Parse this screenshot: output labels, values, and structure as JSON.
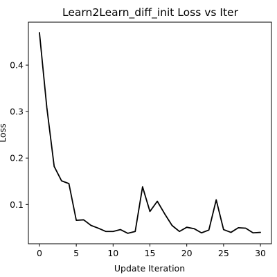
{
  "chart_data": {
    "type": "line",
    "title": "Learn2Learn_diff_init Loss vs Iter",
    "xlabel": "Update Iteration",
    "ylabel": "Loss",
    "xlim": [
      -1.5,
      31.5
    ],
    "ylim": [
      0.0155,
      0.4925
    ],
    "xticks": [
      0,
      5,
      10,
      15,
      20,
      25,
      30
    ],
    "yticks": [
      0.1,
      0.2,
      0.3,
      0.4
    ],
    "ytick_labels": [
      "0.1",
      "0.2",
      "0.3",
      "0.4"
    ],
    "grid": false,
    "legend": false,
    "color": "#000000",
    "series": [
      {
        "x": [
          0,
          1,
          2,
          3,
          4,
          5,
          6,
          7,
          8,
          9,
          10,
          11,
          12,
          13,
          14,
          15,
          16,
          17,
          18,
          19,
          20,
          21,
          22,
          23,
          24,
          25,
          26,
          27,
          28,
          29,
          30
        ],
        "values": [
          0.47,
          0.309,
          0.182,
          0.151,
          0.145,
          0.066,
          0.067,
          0.055,
          0.049,
          0.042,
          0.042,
          0.046,
          0.038,
          0.042,
          0.138,
          0.085,
          0.107,
          0.08,
          0.055,
          0.042,
          0.051,
          0.048,
          0.039,
          0.045,
          0.11,
          0.046,
          0.04,
          0.05,
          0.049,
          0.039,
          0.04
        ]
      }
    ]
  }
}
